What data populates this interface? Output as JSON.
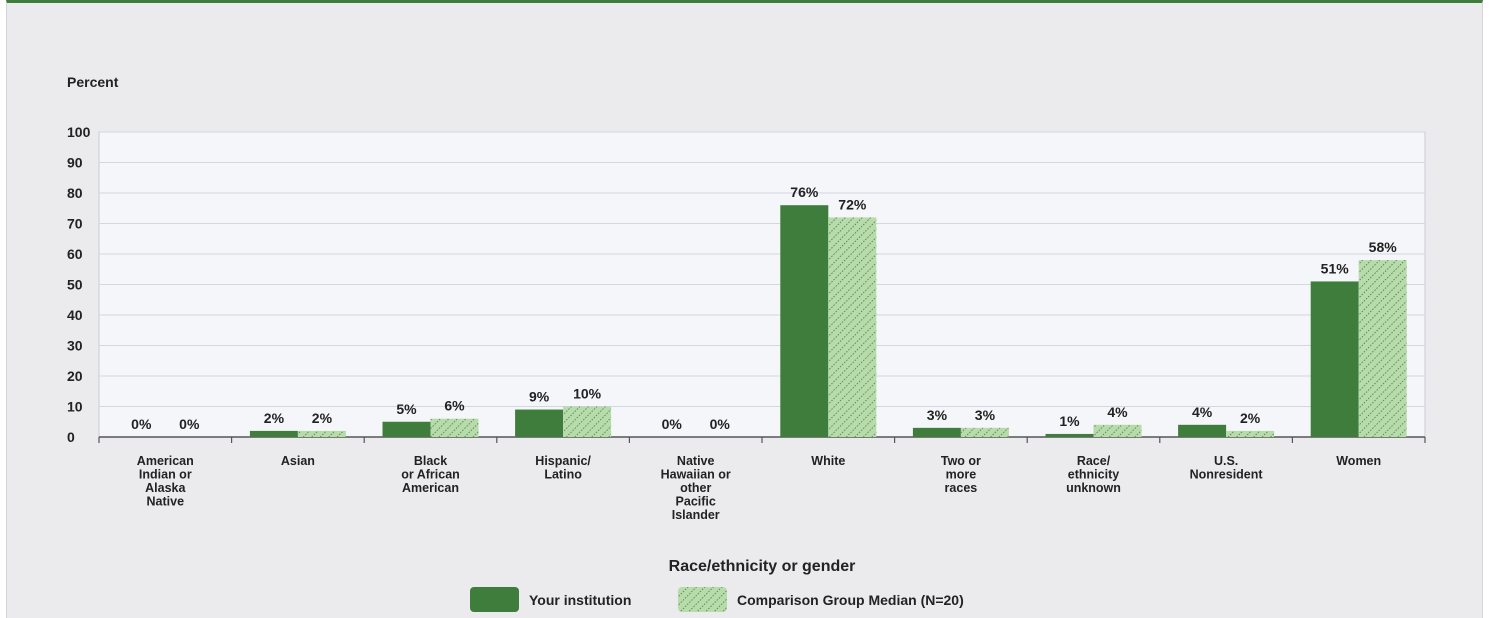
{
  "chart_data": {
    "type": "bar",
    "ylabel": "Percent",
    "xlabel": "Race/ethnicity or gender",
    "ylim": [
      0,
      100
    ],
    "yticks": [
      0,
      10,
      20,
      30,
      40,
      50,
      60,
      70,
      80,
      90,
      100
    ],
    "grid": true,
    "legend_position": "bottom-center",
    "categories": [
      "American Indian or Alaska Native",
      "Asian",
      "Black or African American",
      "Hispanic/ Latino",
      "Native Hawaiian or other Pacific Islander",
      "White",
      "Two or more races",
      "Race/ ethnicity unknown",
      "U.S. Nonresident",
      "Women"
    ],
    "category_label_lines": [
      [
        "American",
        "Indian or",
        "Alaska",
        "Native"
      ],
      [
        "Asian"
      ],
      [
        "Black",
        "or African",
        "American"
      ],
      [
        "Hispanic/",
        "Latino"
      ],
      [
        "Native",
        "Hawaiian or",
        "other",
        "Pacific",
        "Islander"
      ],
      [
        "White"
      ],
      [
        "Two or",
        "more",
        "races"
      ],
      [
        "Race/",
        "ethnicity",
        "unknown"
      ],
      [
        "U.S.",
        "Nonresident"
      ],
      [
        "Women"
      ]
    ],
    "series": [
      {
        "name": "Your institution",
        "color": "#3f7d3c",
        "pattern": "solid",
        "values": [
          0,
          2,
          5,
          9,
          0,
          76,
          3,
          1,
          4,
          51
        ],
        "labels": [
          "0%",
          "2%",
          "5%",
          "9%",
          "0%",
          "76%",
          "3%",
          "1%",
          "4%",
          "51%"
        ]
      },
      {
        "name": "Comparison Group Median (N=20)",
        "color": "#b7dbab",
        "pattern": "hatched",
        "values": [
          0,
          2,
          6,
          10,
          0,
          72,
          3,
          4,
          2,
          58
        ],
        "labels": [
          "0%",
          "2%",
          "6%",
          "10%",
          "0%",
          "72%",
          "3%",
          "4%",
          "2%",
          "58%"
        ]
      }
    ]
  }
}
